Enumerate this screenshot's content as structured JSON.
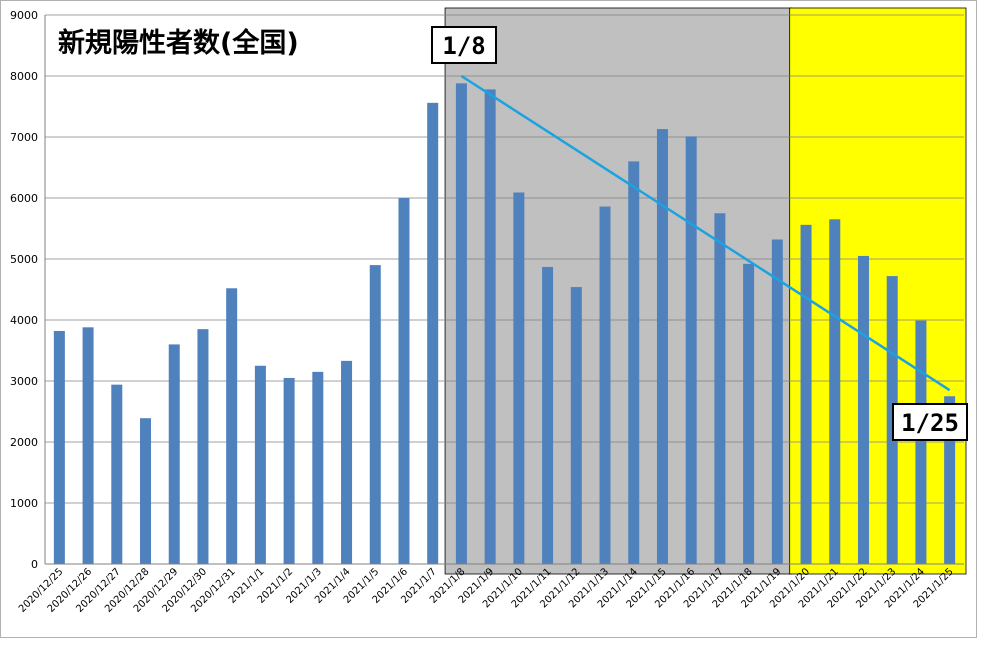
{
  "chart_data": {
    "type": "bar",
    "title": "新規陽性者数(全国)",
    "xlabel": "",
    "ylabel": "",
    "ylim": [
      0,
      9000
    ],
    "yticks": [
      0,
      1000,
      2000,
      3000,
      4000,
      5000,
      6000,
      7000,
      8000,
      9000
    ],
    "grid": true,
    "categories": [
      "2020/12/25",
      "2020/12/26",
      "2020/12/27",
      "2020/12/28",
      "2020/12/29",
      "2020/12/30",
      "2020/12/31",
      "2021/1/1",
      "2021/1/2",
      "2021/1/3",
      "2021/1/4",
      "2021/1/5",
      "2021/1/6",
      "2021/1/7",
      "2021/1/8",
      "2021/1/9",
      "2021/1/10",
      "2021/1/11",
      "2021/1/12",
      "2021/1/13",
      "2021/1/14",
      "2021/1/15",
      "2021/1/16",
      "2021/1/17",
      "2021/1/18",
      "2021/1/19",
      "2021/1/20",
      "2021/1/21",
      "2021/1/22",
      "2021/1/23",
      "2021/1/24",
      "2021/1/25"
    ],
    "values": [
      3820,
      3880,
      2940,
      2390,
      3600,
      3850,
      4520,
      3250,
      3050,
      3150,
      3330,
      4900,
      6000,
      7560,
      7880,
      7780,
      6090,
      4870,
      4540,
      5860,
      6600,
      7130,
      7010,
      5750,
      4920,
      5320,
      5560,
      5650,
      5050,
      4720,
      3990,
      2750
    ],
    "bar_color": "#4f81bd",
    "shaded_regions": [
      {
        "from": "2021/1/8",
        "to": "2021/1/19",
        "color": "#c0c0c0"
      },
      {
        "from": "2021/1/20",
        "to": "2021/1/25",
        "color": "#ffff00"
      }
    ],
    "trend_line": {
      "from": {
        "x": "2021/1/8",
        "y": 8000
      },
      "to": {
        "x": "2021/1/25",
        "y": 2850
      },
      "color": "#1aa3e0"
    },
    "annotations": [
      {
        "text": "1/8",
        "x": "2021/1/8",
        "placement": "top-left"
      },
      {
        "text": "1/25",
        "x": "2021/1/25",
        "placement": "bottom-right"
      }
    ]
  }
}
